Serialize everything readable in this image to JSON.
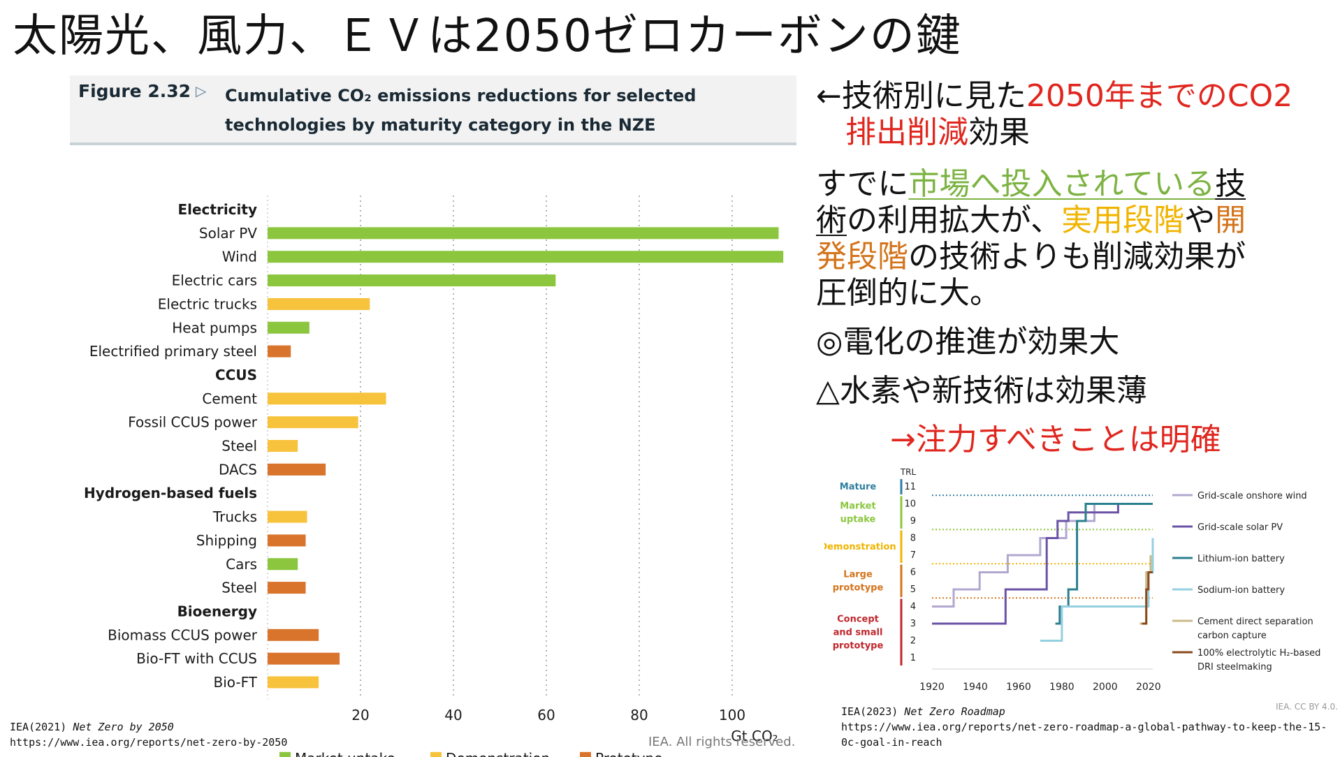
{
  "slide_title": "太陽光、風力、ＥＶは2050ゼロカーボンの鍵",
  "left_figure": {
    "label": "Figure 2.32",
    "arrow": "▷",
    "title_line1": "Cumulative CO₂ emissions reductions for selected",
    "title_line2": "technologies by maturity category in the NZE",
    "rights": "IEA. All rights reserved."
  },
  "source_left": {
    "line1_prefix": "IEA(2021) ",
    "line1_italic": "Net Zero by 2050",
    "line2": "https://www.iea.org/reports/net-zero-by-2050"
  },
  "source_right": {
    "line1_prefix": "IEA(2023) ",
    "line1_italic": "Net Zero Roadmap",
    "line2": "https://www.iea.org/reports/net-zero-roadmap-a-global-pathway-to-keep-the-15-",
    "line3": "0c-goal-in-reach"
  },
  "right_text": {
    "l1a": "←技術別に見た",
    "l1b": "2050年までのCO2",
    "l2a": "排出削減",
    "l2b": "効果",
    "l3a": "すでに",
    "l3b": "市場へ投入されている",
    "l3c": "技",
    "l4a": "術",
    "l4b": "の利用拡大が、",
    "l4c": "実用段階",
    "l4d": "や",
    "l4e": "開",
    "l5a": "発段階",
    "l5b": "の技術よりも削減効果が",
    "l6": "圧倒的に大。",
    "l7": "◎電化の推進が効果大",
    "l8": "△水素や新技術は効果薄",
    "l9": "→注力すべきことは明確"
  },
  "trl_credit": "IEA. CC BY 4.0.",
  "chart_data": [
    {
      "type": "bar",
      "orientation": "horizontal",
      "xlabel": "Gt CO₂",
      "xlim": [
        0,
        120
      ],
      "xticks": [
        20,
        40,
        60,
        80,
        100,
        120
      ],
      "grid": "vertical dotted",
      "legend_position": "bottom",
      "legend": [
        {
          "name": "Market uptake",
          "color": "#8cc63f"
        },
        {
          "name": "Demonstration",
          "color": "#f7c33c"
        },
        {
          "name": "Prototype",
          "color": "#d9742c"
        }
      ],
      "groups": [
        {
          "name": "Electricity",
          "items": [
            {
              "label": "Solar PV",
              "value": 110,
              "category": "Market uptake"
            },
            {
              "label": "Wind",
              "value": 111,
              "category": "Market uptake"
            },
            {
              "label": "Electric cars",
              "value": 62,
              "category": "Market uptake"
            },
            {
              "label": "Electric trucks",
              "value": 22,
              "category": "Demonstration"
            },
            {
              "label": "Heat pumps",
              "value": 9,
              "category": "Market uptake"
            },
            {
              "label": "Electrified primary steel",
              "value": 5,
              "category": "Prototype"
            }
          ]
        },
        {
          "name": "CCUS",
          "items": [
            {
              "label": "Cement",
              "value": 25.5,
              "category": "Demonstration"
            },
            {
              "label": "Fossil CCUS power",
              "value": 19.5,
              "category": "Demonstration"
            },
            {
              "label": "Steel",
              "value": 6.5,
              "category": "Demonstration"
            },
            {
              "label": "DACS",
              "value": 12.5,
              "category": "Prototype"
            }
          ]
        },
        {
          "name": "Hydrogen-based fuels",
          "items": [
            {
              "label": "Trucks",
              "value": 8.5,
              "category": "Demonstration"
            },
            {
              "label": "Shipping",
              "value": 8.2,
              "category": "Prototype"
            },
            {
              "label": "Cars",
              "value": 6.5,
              "category": "Market uptake"
            },
            {
              "label": "Steel",
              "value": 8.2,
              "category": "Prototype"
            }
          ]
        },
        {
          "name": "Bioenergy",
          "items": [
            {
              "label": "Biomass CCUS power",
              "value": 11,
              "category": "Prototype"
            },
            {
              "label": "Bio-FT with CCUS",
              "value": 15.5,
              "category": "Prototype"
            },
            {
              "label": "Bio-FT",
              "value": 11,
              "category": "Demonstration"
            }
          ]
        }
      ]
    },
    {
      "type": "line",
      "step": true,
      "ylabel": "TRL",
      "ylim": [
        1,
        11
      ],
      "yticks": [
        1,
        2,
        3,
        4,
        5,
        6,
        7,
        8,
        9,
        10,
        11
      ],
      "xlim": [
        1920,
        2022
      ],
      "xticks": [
        1920,
        1940,
        1960,
        1980,
        2000,
        2020
      ],
      "categories_axis": [
        {
          "name": "Mature",
          "trl": [
            11,
            11
          ],
          "color": "#2f7fa0"
        },
        {
          "name": "Market uptake",
          "trl": [
            9,
            10
          ],
          "color": "#8cc63f"
        },
        {
          "name": "Demonstration",
          "trl": [
            7,
            8
          ],
          "color": "#f0b400"
        },
        {
          "name": "Large prototype",
          "trl": [
            5,
            6
          ],
          "color": "#d4741b"
        },
        {
          "name": "Concept and small prototype",
          "trl": [
            1,
            4
          ],
          "color": "#c0272d"
        }
      ],
      "thresholds": [
        {
          "trl": 10.5,
          "color": "#2f7fa0"
        },
        {
          "trl": 8.5,
          "color": "#8cc63f"
        },
        {
          "trl": 6.5,
          "color": "#f0b400"
        },
        {
          "trl": 4.5,
          "color": "#d4741b"
        }
      ],
      "series": [
        {
          "name": "Grid-scale onshore wind",
          "color": "#b1a7cf",
          "points": [
            [
              1920,
              4
            ],
            [
              1930,
              4
            ],
            [
              1930,
              5
            ],
            [
              1942,
              5
            ],
            [
              1942,
              6
            ],
            [
              1955,
              6
            ],
            [
              1955,
              7
            ],
            [
              1970,
              7
            ],
            [
              1970,
              8
            ],
            [
              1982,
              8
            ],
            [
              1982,
              9
            ],
            [
              1995,
              9
            ],
            [
              1995,
              10
            ],
            [
              2022,
              10
            ]
          ]
        },
        {
          "name": "Grid-scale solar PV",
          "color": "#6a52a5",
          "points": [
            [
              1920,
              3
            ],
            [
              1954,
              3
            ],
            [
              1954,
              5
            ],
            [
              1973,
              5
            ],
            [
              1973,
              8
            ],
            [
              1978,
              8
            ],
            [
              1978,
              9
            ],
            [
              1983,
              9
            ],
            [
              1983,
              9.5
            ],
            [
              2006,
              9.5
            ],
            [
              2006,
              10
            ],
            [
              2022,
              10
            ]
          ]
        },
        {
          "name": "Lithium-ion battery",
          "color": "#2a7f8e",
          "points": [
            [
              1977,
              3
            ],
            [
              1979,
              3
            ],
            [
              1979,
              4
            ],
            [
              1983,
              4
            ],
            [
              1983,
              5
            ],
            [
              1987,
              5
            ],
            [
              1987,
              9
            ],
            [
              1991,
              9
            ],
            [
              1991,
              10
            ],
            [
              2022,
              10
            ]
          ]
        },
        {
          "name": "Sodium-ion battery",
          "color": "#94cfe0",
          "points": [
            [
              1970,
              2
            ],
            [
              1980,
              2
            ],
            [
              1980,
              4
            ],
            [
              2020,
              4
            ],
            [
              2020,
              6
            ],
            [
              2022,
              6
            ],
            [
              2022,
              8
            ]
          ]
        },
        {
          "name": "Cement direct separation carbon capture",
          "color": "#c9b98a",
          "points": [
            [
              2016,
              3
            ],
            [
              2019,
              3
            ],
            [
              2019,
              6
            ],
            [
              2021,
              6
            ],
            [
              2021,
              7
            ]
          ]
        },
        {
          "name": "100% electrolytic H₂-based DRI steelmaking",
          "color": "#8a4a1c",
          "points": [
            [
              2017,
              3
            ],
            [
              2019,
              3
            ],
            [
              2019,
              5
            ],
            [
              2020,
              5
            ],
            [
              2020,
              6
            ],
            [
              2022,
              6
            ]
          ]
        }
      ]
    }
  ]
}
